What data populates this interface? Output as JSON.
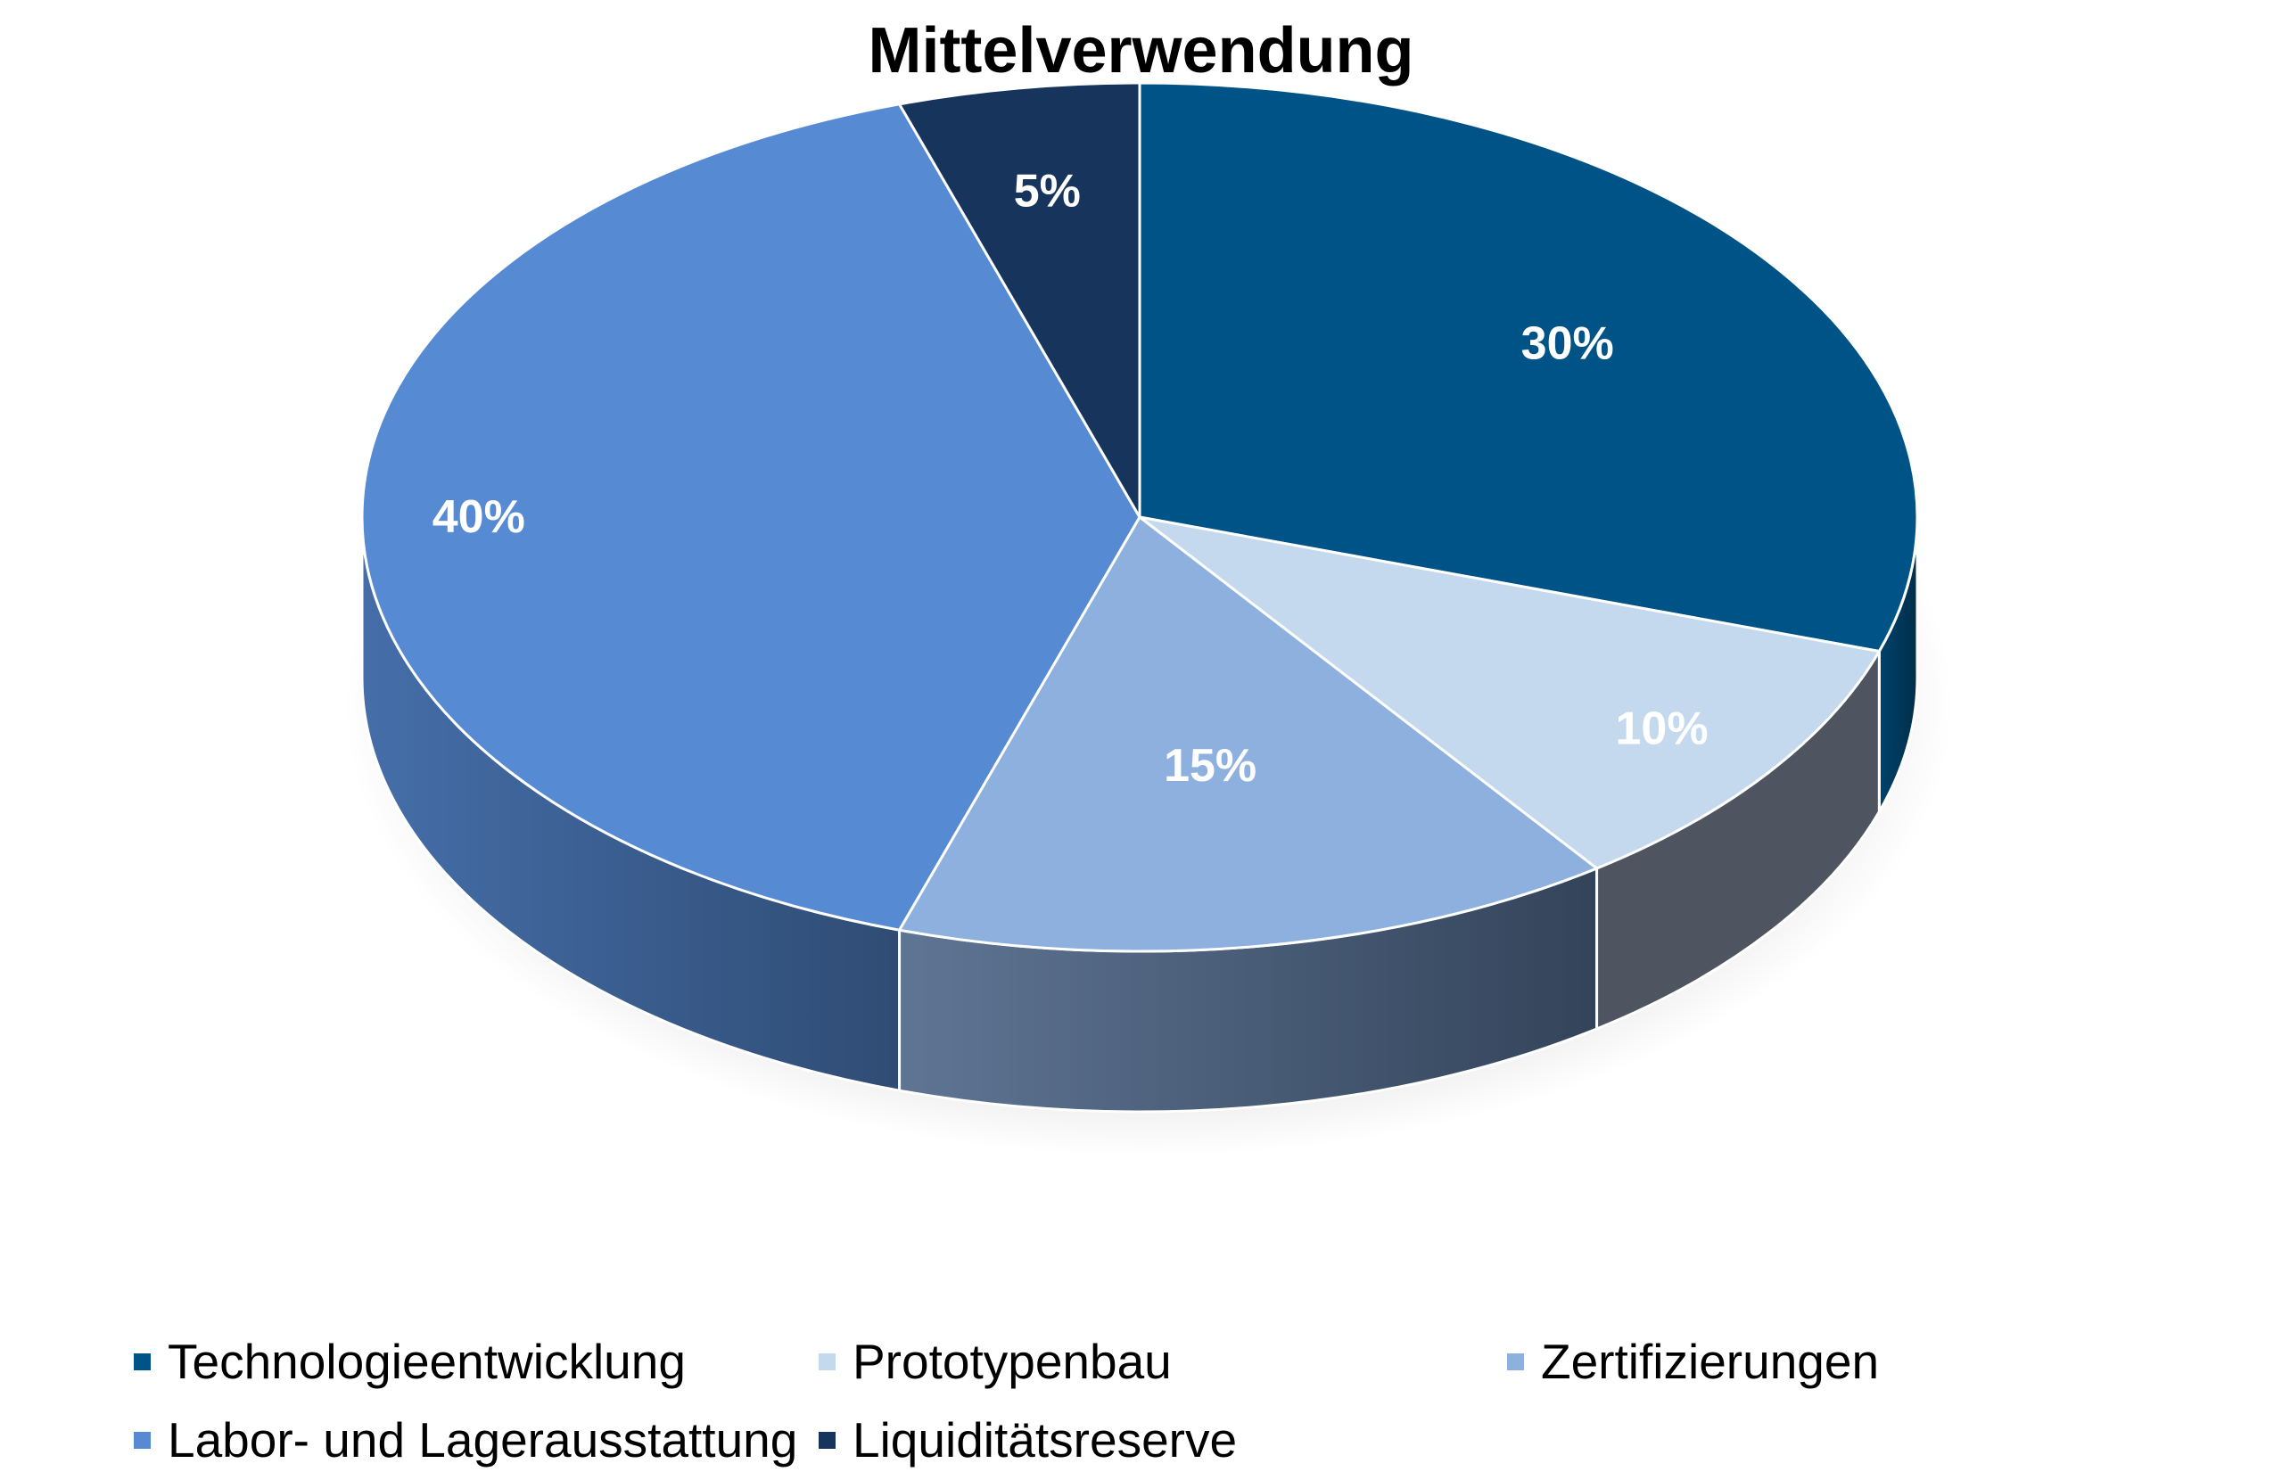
{
  "chart_data": {
    "type": "pie",
    "title": "Mittelverwendung",
    "categories": [
      "Technologieentwicklung",
      "Prototypenbau",
      "Zertifizierungen",
      "Labor- und Lagerausstattung",
      "Liquiditätsreserve"
    ],
    "values": [
      30,
      10,
      15,
      40,
      5
    ],
    "labels": [
      "30%",
      "10%",
      "15%",
      "40%",
      "5%"
    ],
    "colors": [
      "#005386",
      "#C5D9EE",
      "#8DB0DE",
      "#568AD3",
      "#17355C"
    ],
    "legend_position": "bottom",
    "style": "3d-pie"
  }
}
